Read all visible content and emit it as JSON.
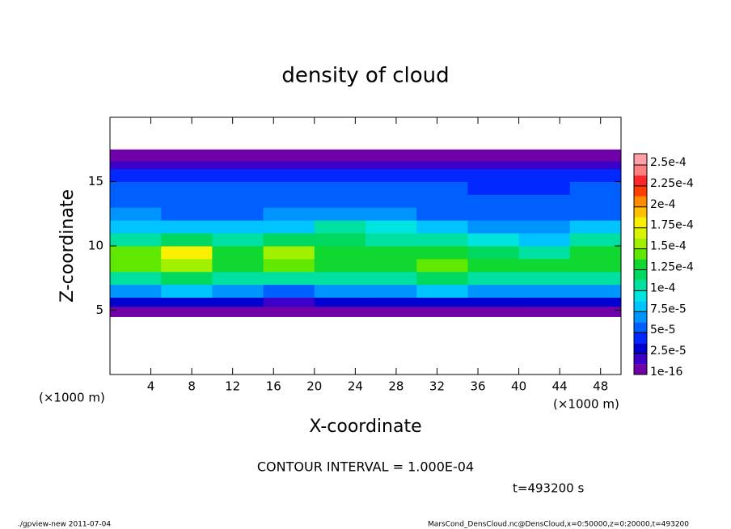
{
  "chart_data": {
    "type": "heatmap",
    "title": "density of cloud",
    "xlabel": "X-coordinate",
    "ylabel": "Z-coordinate",
    "x_unit": "(×1000 m)",
    "y_unit": "(×1000 m)",
    "contour_note": "CONTOUR INTERVAL = 1.000E-04",
    "time_note": "t=493200 s",
    "footer_left": "./gpview-new  2011-07-04",
    "footer_right": "MarsCond_DensCloud.nc@DensCloud,x=0:50000,z=0:20000,t=493200",
    "xlim": [
      0,
      50
    ],
    "ylim": [
      0,
      20
    ],
    "xticks": [
      4,
      8,
      12,
      16,
      20,
      24,
      28,
      32,
      36,
      40,
      44,
      48
    ],
    "yticks": [
      5,
      10,
      15
    ],
    "x_edges": [
      0,
      5,
      10,
      15,
      20,
      25,
      30,
      35,
      40,
      45,
      50
    ],
    "z_edges": [
      4.5,
      5.3,
      6,
      7,
      8,
      9,
      10,
      11,
      12,
      13,
      14,
      15,
      16,
      16.6,
      17.5
    ],
    "values": [
      [
        6e-06,
        6e-06,
        6e-06,
        8e-06,
        6e-06,
        6e-06,
        6e-06,
        6e-06,
        6e-06,
        6e-06
      ],
      [
        3e-05,
        3e-05,
        3e-05,
        2e-05,
        3e-05,
        3e-05,
        3e-05,
        3e-05,
        3e-05,
        3e-05
      ],
      [
        7e-05,
        7.5e-05,
        7e-05,
        6e-05,
        7e-05,
        7e-05,
        7.5e-05,
        7e-05,
        7e-05,
        7e-05
      ],
      [
        0.00011,
        0.00012,
        0.000105,
        0.00011,
        0.00011,
        0.00011,
        0.000115,
        0.00011,
        0.00011,
        0.00011
      ],
      [
        0.000145,
        0.00016,
        0.00013,
        0.000145,
        0.000135,
        0.000135,
        0.00014,
        0.000135,
        0.00013,
        0.000135
      ],
      [
        0.00014,
        0.00018,
        0.000135,
        0.00016,
        0.000135,
        0.00013,
        0.00013,
        0.00012,
        0.00011,
        0.000125
      ],
      [
        0.000105,
        0.00012,
        0.0001,
        0.000115,
        0.000115,
        0.00011,
        0.000105,
        9e-05,
        8e-05,
        0.0001
      ],
      [
        8e-05,
        8e-05,
        7.5e-05,
        8.5e-05,
        0.0001,
        9e-05,
        8e-05,
        7e-05,
        6.5e-05,
        7.5e-05
      ],
      [
        6.5e-05,
        6e-05,
        6e-05,
        6.5e-05,
        7e-05,
        6.5e-05,
        6e-05,
        6e-05,
        5.5e-05,
        6e-05
      ],
      [
        6e-05,
        5.5e-05,
        5.5e-05,
        6e-05,
        6e-05,
        6e-05,
        5.5e-05,
        5.5e-05,
        5e-05,
        5.5e-05
      ],
      [
        5.5e-05,
        5e-05,
        5e-05,
        5.5e-05,
        5.5e-05,
        5e-05,
        5e-05,
        4.5e-05,
        4.5e-05,
        5e-05
      ],
      [
        4.5e-05,
        4.5e-05,
        4.5e-05,
        4.5e-05,
        4e-05,
        4e-05,
        4.5e-05,
        4e-05,
        4e-05,
        4.5e-05
      ],
      [
        2e-05,
        2e-05,
        2e-05,
        2e-05,
        2e-05,
        2e-05,
        2e-05,
        2e-05,
        2e-05,
        2e-05
      ],
      [
        6e-06,
        6e-06,
        6e-06,
        6e-06,
        6e-06,
        6e-06,
        6e-06,
        6e-06,
        6e-06,
        6e-06
      ]
    ],
    "colorbar": {
      "levels": [
        1e-16,
        1.25e-05,
        2.5e-05,
        3.75e-05,
        5e-05,
        6.25e-05,
        7.5e-05,
        8.75e-05,
        0.0001,
        0.0001125,
        0.000125,
        0.0001375,
        0.00015,
        0.0001625,
        0.000175,
        0.0001875,
        0.0002,
        0.0002125,
        0.000225,
        0.0002375,
        0.00025
      ],
      "colors": [
        "#7000a8",
        "#3c00c8",
        "#0000d0",
        "#0028ff",
        "#0060ff",
        "#0094ff",
        "#00c4ff",
        "#00e4e0",
        "#00e0a0",
        "#00d860",
        "#10d830",
        "#60e800",
        "#a0f000",
        "#d8f400",
        "#f8f000",
        "#ffc000",
        "#ff8c00",
        "#ff4000",
        "#ff2828",
        "#ff8080"
      ],
      "top_color": "#ffa0a8",
      "ticks": [
        {
          "value": 1e-16,
          "label": "1e-16"
        },
        {
          "value": 2.5e-05,
          "label": "2.5e-5"
        },
        {
          "value": 5e-05,
          "label": "5e-5"
        },
        {
          "value": 7.5e-05,
          "label": "7.5e-5"
        },
        {
          "value": 0.0001,
          "label": "1e-4"
        },
        {
          "value": 0.000125,
          "label": "1.25e-4"
        },
        {
          "value": 0.00015,
          "label": "1.5e-4"
        },
        {
          "value": 0.000175,
          "label": "1.75e-4"
        },
        {
          "value": 0.0002,
          "label": "2e-4"
        },
        {
          "value": 0.000225,
          "label": "2.25e-4"
        },
        {
          "value": 0.00025,
          "label": "2.5e-4"
        }
      ]
    }
  }
}
